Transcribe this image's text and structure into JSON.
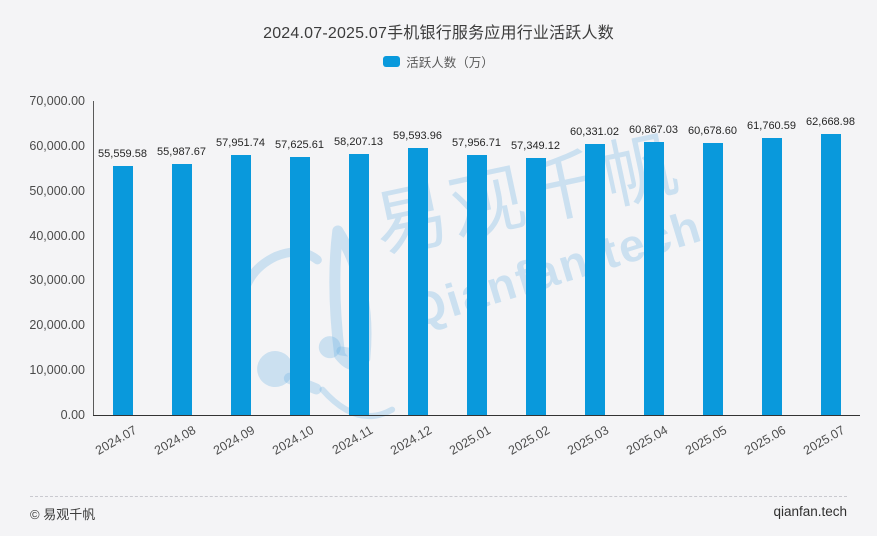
{
  "title": "2024.07-2025.07手机银行服务应用行业活跃人数",
  "legend": {
    "label": "活跃人数（万）"
  },
  "chart_data": {
    "type": "bar",
    "title": "2024.07-2025.07手机银行服务应用行业活跃人数",
    "categories": [
      "2024.07",
      "2024.08",
      "2024.09",
      "2024.10",
      "2024.11",
      "2024.12",
      "2025.01",
      "2025.02",
      "2025.03",
      "2025.04",
      "2025.05",
      "2025.06",
      "2025.07"
    ],
    "series": [
      {
        "name": "活跃人数（万）",
        "values": [
          55559.58,
          55987.67,
          57951.74,
          57625.61,
          58207.13,
          59593.96,
          57956.71,
          57349.12,
          60331.02,
          60867.03,
          60678.6,
          61760.59,
          62668.98
        ]
      }
    ],
    "xlabel": "",
    "ylabel": "",
    "ylim": [
      0,
      70000
    ],
    "y_tick_step": 10000,
    "y_tick_labels": [
      "0.00",
      "10,000.00",
      "20,000.00",
      "30,000.00",
      "40,000.00",
      "50,000.00",
      "60,000.00",
      "70,000.00"
    ],
    "grid": false,
    "legend_position": "top",
    "bar_color": "#0999dc",
    "value_labels": true,
    "x_label_rotation": -30
  },
  "colors": {
    "bar": "#0999dc",
    "background": "#f4f4f6",
    "axis_y": "#5a5a5a",
    "axis_x": "#333333",
    "watermark": "rgba(98,171,227,0.28)"
  },
  "watermark": {
    "cn": "易观千帆",
    "en": "Qianfan.tech"
  },
  "footer": {
    "left": "© 易观千帆",
    "right": "qianfan.tech"
  }
}
